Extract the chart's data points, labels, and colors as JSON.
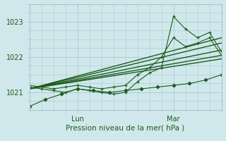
{
  "title": "",
  "xlabel": "Pression niveau de la mer( hPa )",
  "ylabel": "",
  "bg_color": "#d0e8ec",
  "grid_color": "#a8c8cc",
  "line_color": "#1a5c1a",
  "ylim": [
    1020.5,
    1023.5
  ],
  "xlim": [
    0,
    48
  ],
  "yticks": [
    1021,
    1022,
    1023
  ],
  "xtick_positions": [
    12,
    36
  ],
  "xtick_labels": [
    "Lun",
    "Mar"
  ],
  "series": [
    {
      "x": [
        0,
        48
      ],
      "y": [
        1021.1,
        1021.95
      ],
      "marker": null,
      "lw": 1.0
    },
    {
      "x": [
        0,
        48
      ],
      "y": [
        1021.1,
        1022.05
      ],
      "marker": null,
      "lw": 1.0
    },
    {
      "x": [
        0,
        48
      ],
      "y": [
        1021.1,
        1022.2
      ],
      "marker": null,
      "lw": 1.0
    },
    {
      "x": [
        0,
        48
      ],
      "y": [
        1021.1,
        1022.4
      ],
      "marker": null,
      "lw": 1.0
    },
    {
      "x": [
        0,
        48
      ],
      "y": [
        1021.1,
        1022.55
      ],
      "marker": null,
      "lw": 1.0
    },
    {
      "x": [
        0,
        3,
        6,
        9,
        12,
        15,
        18,
        21,
        24,
        27,
        30,
        33,
        36,
        39,
        42,
        45,
        48
      ],
      "y": [
        1021.15,
        1021.1,
        1021.05,
        1021.0,
        1021.1,
        1021.05,
        1021.0,
        1020.95,
        1021.0,
        1021.3,
        1021.55,
        1021.7,
        1023.15,
        1022.8,
        1022.55,
        1022.7,
        1022.15
      ],
      "marker": "+",
      "lw": 0.8
    },
    {
      "x": [
        0,
        3,
        6,
        9,
        12,
        15,
        18,
        21,
        24,
        27,
        30,
        33,
        36,
        39,
        42,
        45,
        48
      ],
      "y": [
        1021.2,
        1021.15,
        1021.1,
        1021.15,
        1021.2,
        1021.15,
        1021.1,
        1021.15,
        1021.2,
        1021.5,
        1021.7,
        1022.0,
        1022.55,
        1022.3,
        1022.4,
        1022.55,
        1022.05
      ],
      "marker": "+",
      "lw": 0.8
    },
    {
      "x": [
        0,
        4,
        8,
        12,
        16,
        20,
        24,
        28,
        32,
        36,
        40,
        44,
        48
      ],
      "y": [
        1020.6,
        1020.8,
        1020.95,
        1021.1,
        1021.05,
        1021.0,
        1021.05,
        1021.1,
        1021.15,
        1021.2,
        1021.25,
        1021.35,
        1021.5
      ],
      "marker": "D",
      "lw": 0.8
    }
  ]
}
